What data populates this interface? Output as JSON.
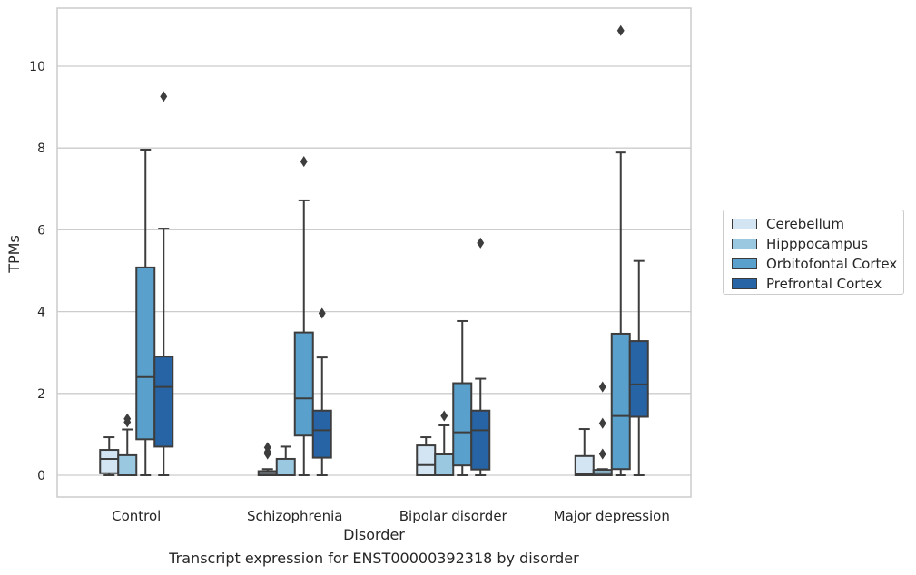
{
  "caption": "Transcript expression for ENST00000392318 by disorder",
  "chart_data": {
    "type": "box",
    "xlabel": "Disorder",
    "ylabel": "TPMs",
    "ylim": [
      -0.5,
      11.4
    ],
    "yticks": [
      0,
      2,
      4,
      6,
      8,
      10
    ],
    "grid": "horizontal",
    "legend_position": "right",
    "categories": [
      "Control",
      "Schizophrenia",
      "Bipolar disorder",
      "Major depression"
    ],
    "series": [
      {
        "name": "Cerebellum",
        "color": "#d3e4f3",
        "boxes": [
          {
            "whisker_low": 0.0,
            "q1": 0.05,
            "median": 0.4,
            "q3": 0.62,
            "whisker_high": 0.93,
            "outliers": []
          },
          {
            "whisker_low": 0.0,
            "q1": 0.0,
            "median": 0.05,
            "q3": 0.1,
            "whisker_high": 0.15,
            "outliers": [
              0.52,
              0.57,
              0.68
            ]
          },
          {
            "whisker_low": 0.0,
            "q1": 0.0,
            "median": 0.25,
            "q3": 0.73,
            "whisker_high": 0.93,
            "outliers": []
          },
          {
            "whisker_low": 0.0,
            "q1": 0.0,
            "median": 0.03,
            "q3": 0.47,
            "whisker_high": 1.13,
            "outliers": []
          }
        ]
      },
      {
        "name": "Hipppocampus",
        "color": "#9ac8e0",
        "boxes": [
          {
            "whisker_low": 0.0,
            "q1": 0.0,
            "median": 0.0,
            "q3": 0.49,
            "whisker_high": 1.12,
            "outliers": [
              1.3,
              1.38
            ]
          },
          {
            "whisker_low": 0.0,
            "q1": 0.0,
            "median": 0.0,
            "q3": 0.4,
            "whisker_high": 0.7,
            "outliers": []
          },
          {
            "whisker_low": 0.0,
            "q1": 0.0,
            "median": 0.0,
            "q3": 0.51,
            "whisker_high": 1.22,
            "outliers": [
              1.45
            ]
          },
          {
            "whisker_low": 0.0,
            "q1": 0.0,
            "median": 0.05,
            "q3": 0.13,
            "whisker_high": 0.15,
            "outliers": [
              0.52,
              1.27,
              2.16
            ]
          }
        ]
      },
      {
        "name": "Orbitofontal Cortex",
        "color": "#5aa0cc",
        "boxes": [
          {
            "whisker_low": 0.0,
            "q1": 0.88,
            "median": 2.4,
            "q3": 5.08,
            "whisker_high": 7.96,
            "outliers": []
          },
          {
            "whisker_low": 0.0,
            "q1": 0.97,
            "median": 1.88,
            "q3": 3.49,
            "whisker_high": 6.72,
            "outliers": [
              7.67
            ]
          },
          {
            "whisker_low": 0.0,
            "q1": 0.24,
            "median": 1.05,
            "q3": 2.25,
            "whisker_high": 3.77,
            "outliers": []
          },
          {
            "whisker_low": 0.0,
            "q1": 0.15,
            "median": 1.45,
            "q3": 3.46,
            "whisker_high": 7.89,
            "outliers": [
              10.87
            ]
          }
        ]
      },
      {
        "name": "Prefrontal Cortex",
        "color": "#2664a5",
        "boxes": [
          {
            "whisker_low": 0.0,
            "q1": 0.7,
            "median": 2.16,
            "q3": 2.9,
            "whisker_high": 6.03,
            "outliers": [
              9.26
            ]
          },
          {
            "whisker_low": 0.0,
            "q1": 0.43,
            "median": 1.1,
            "q3": 1.58,
            "whisker_high": 2.88,
            "outliers": [
              3.96
            ]
          },
          {
            "whisker_low": 0.0,
            "q1": 0.14,
            "median": 1.1,
            "q3": 1.58,
            "whisker_high": 2.36,
            "outliers": [
              5.68
            ]
          },
          {
            "whisker_low": 0.0,
            "q1": 1.43,
            "median": 2.22,
            "q3": 3.28,
            "whisker_high": 5.24,
            "outliers": []
          }
        ]
      }
    ]
  }
}
